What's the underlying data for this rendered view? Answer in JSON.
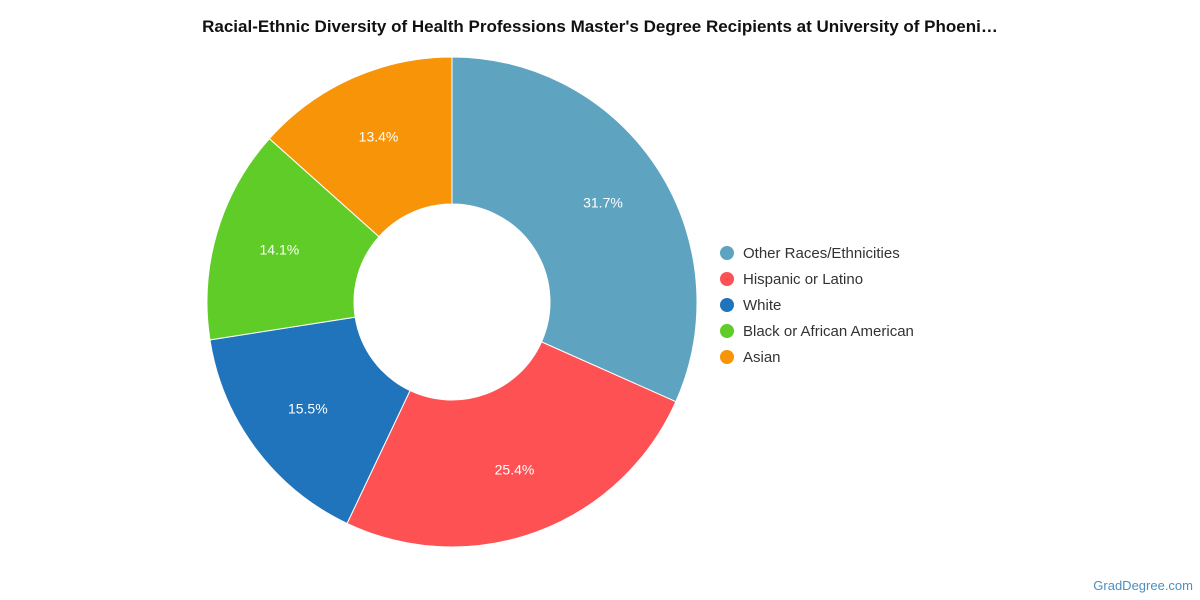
{
  "chart_data": {
    "type": "pie",
    "title": "Racial-Ethnic Diversity of Health Professions Master's Degree Recipients at University of Phoeni…",
    "donut": true,
    "legend_position": "right",
    "slices": [
      {
        "label": "Other Races/Ethnicities",
        "value": 31.7,
        "value_label": "31.7%",
        "color": "#5ea3bf"
      },
      {
        "label": "Hispanic or Latino",
        "value": 25.4,
        "value_label": "25.4%",
        "color": "#fd5154"
      },
      {
        "label": "White",
        "value": 15.5,
        "value_label": "15.5%",
        "color": "#1f74bb"
      },
      {
        "label": "Black or African American",
        "value": 14.1,
        "value_label": "14.1%",
        "color": "#60cc28"
      },
      {
        "label": "Asian",
        "value": 13.4,
        "value_label": "13.4%",
        "color": "#f79408"
      }
    ]
  },
  "watermark": "GradDegree.com"
}
